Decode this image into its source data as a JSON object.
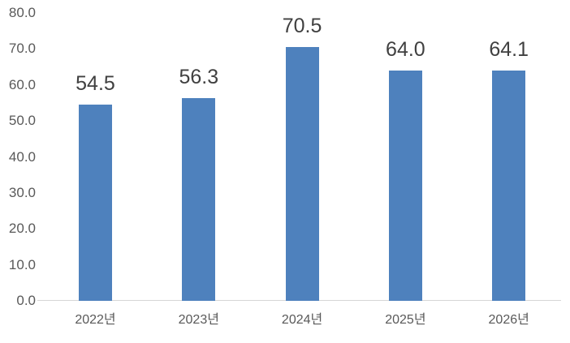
{
  "chart_data": {
    "type": "bar",
    "title": "",
    "xlabel": "",
    "ylabel": "",
    "categories": [
      "2022년",
      "2023년",
      "2024년",
      "2025년",
      "2026년"
    ],
    "values": [
      54.5,
      56.3,
      70.5,
      64.0,
      64.1
    ],
    "data_labels": [
      "54.5",
      "56.3",
      "70.5",
      "64.0",
      "64.1"
    ],
    "ylim": [
      0,
      80
    ],
    "ytick_interval": 10,
    "ytick_labels": [
      "0.0",
      "10.0",
      "20.0",
      "30.0",
      "40.0",
      "50.0",
      "60.0",
      "70.0",
      "80.0"
    ],
    "grid": false,
    "legend": false,
    "colors": {
      "bar": "#4e81bd",
      "axis_line": "#d6d6d6",
      "tick_label": "#595959",
      "data_label": "#404040",
      "background": "#ffffff"
    }
  }
}
